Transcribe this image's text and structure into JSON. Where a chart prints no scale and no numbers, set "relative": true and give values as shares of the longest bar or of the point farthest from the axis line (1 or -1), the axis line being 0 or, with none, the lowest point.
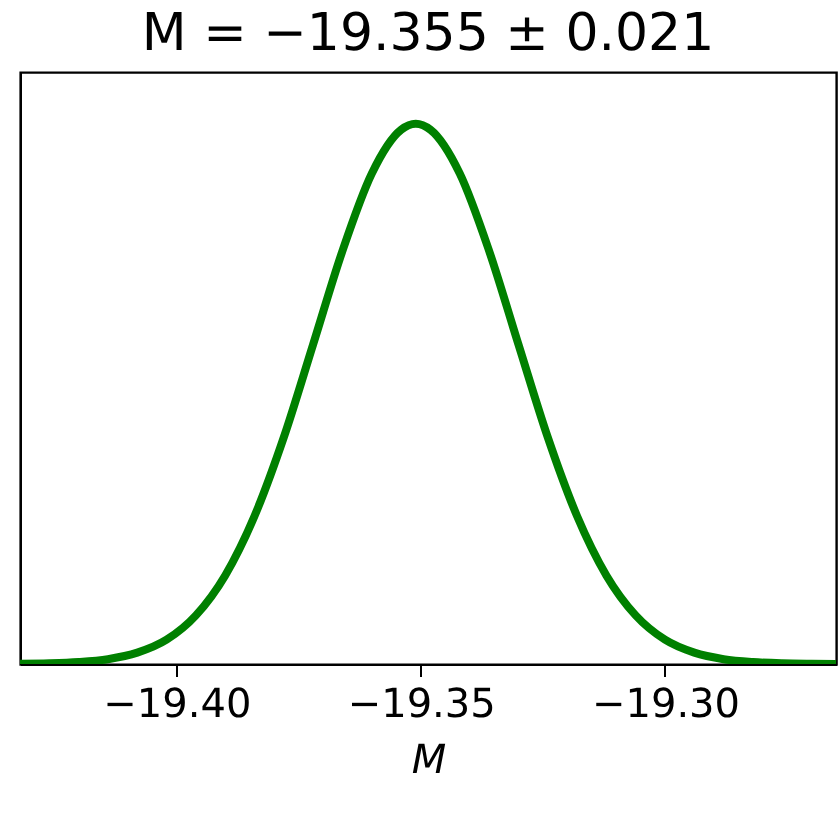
{
  "chart_data": {
    "type": "line",
    "title": "M = −19.355 ± 0.021",
    "xlabel": "M",
    "relative": true,
    "tick_labels": "x",
    "xlim": [
      -19.432,
      -19.265
    ],
    "xticks": [
      {
        "value": -19.4,
        "label": "−19.40"
      },
      {
        "value": -19.35,
        "label": "−19.35"
      },
      {
        "value": -19.3,
        "label": "−19.30"
      }
    ],
    "x": [
      -19.432,
      -19.426,
      -19.42,
      -19.414,
      -19.408,
      -19.402,
      -19.396,
      -19.39,
      -19.384,
      -19.378,
      -19.372,
      -19.366,
      -19.36,
      -19.354,
      -19.351,
      -19.348,
      -19.342,
      -19.336,
      -19.33,
      -19.324,
      -19.318,
      -19.312,
      -19.306,
      -19.3,
      -19.294,
      -19.288,
      -19.282,
      -19.276,
      -19.27,
      -19.265
    ],
    "series": [
      {
        "color": "#008000",
        "values": [
          0.0004,
          0.0012,
          0.0035,
          0.0089,
          0.021,
          0.045,
          0.09,
          0.164,
          0.274,
          0.42,
          0.592,
          0.765,
          0.908,
          0.989,
          1,
          0.989,
          0.908,
          0.765,
          0.592,
          0.42,
          0.274,
          0.164,
          0.09,
          0.045,
          0.021,
          0.0089,
          0.0035,
          0.0012,
          0.0004,
          0.0001
        ]
      }
    ],
    "grid": false,
    "marker": "none",
    "line_style": "solid"
  }
}
